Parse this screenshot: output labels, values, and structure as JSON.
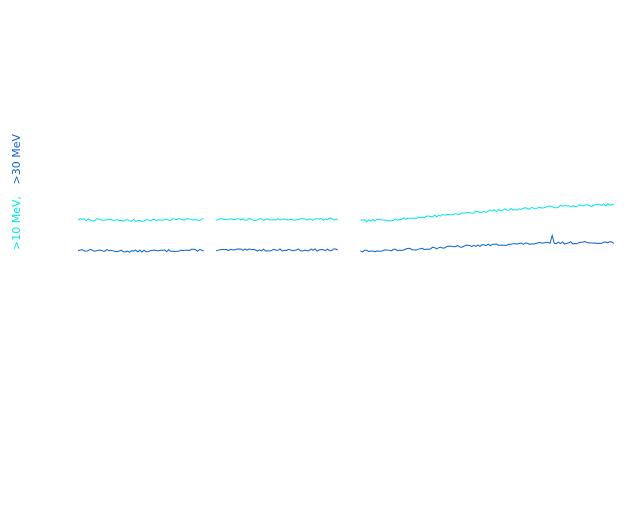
{
  "chart_data": {
    "type": "line",
    "title": "",
    "xlabel": "",
    "ylabel_parts": [
      {
        "text": ">10 MeV,",
        "color": "#00e5ee"
      },
      {
        "text": ">30 MeV",
        "color": "#1060d0"
      }
    ],
    "grid": false,
    "legend": "none",
    "x": {
      "min": 0,
      "max": 100
    },
    "y": {
      "min": 0,
      "max": 100,
      "scale": "linear"
    },
    "gaps": [
      [
        23.5,
        25.5
      ],
      [
        48.5,
        52.5
      ]
    ],
    "series": [
      {
        "color": "#00e5ee",
        "knots": [
          [
            0,
            59.5
          ],
          [
            10,
            59.2
          ],
          [
            20,
            59.6
          ],
          [
            30,
            59.5
          ],
          [
            48,
            59.6
          ],
          [
            52,
            59.0
          ],
          [
            60,
            59.6
          ],
          [
            70,
            61.2
          ],
          [
            80,
            62.6
          ],
          [
            90,
            63.6
          ],
          [
            100,
            64.2
          ]
        ],
        "jitter": 0.35,
        "seed": 7
      },
      {
        "color": "#1060d0",
        "knots": [
          [
            0,
            50.0
          ],
          [
            10,
            49.6
          ],
          [
            20,
            49.9
          ],
          [
            30,
            50.0
          ],
          [
            48,
            50.0
          ],
          [
            52,
            49.6
          ],
          [
            60,
            50.0
          ],
          [
            70,
            51.0
          ],
          [
            80,
            51.8
          ],
          [
            90,
            52.2
          ],
          [
            100,
            52.4
          ]
        ],
        "jitter": 0.35,
        "seed": 13,
        "spikes": [
          [
            88.5,
            2.2
          ]
        ]
      }
    ]
  }
}
